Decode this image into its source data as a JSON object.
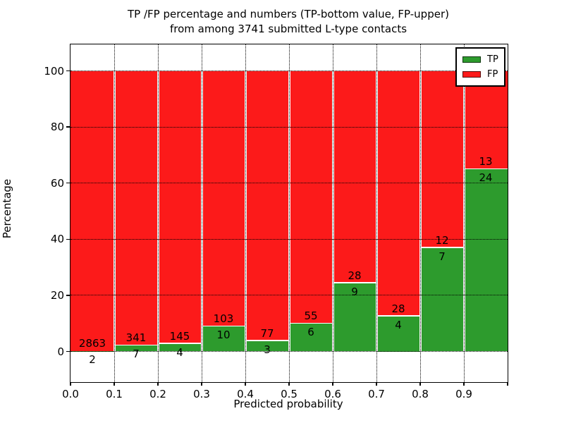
{
  "title": {
    "line1": "TP /FP percentage and numbers (TP-bottom value, FP-upper)",
    "line2": "from among 3741 submitted L-type contacts"
  },
  "axes": {
    "xlabel": "Predicted probability",
    "ylabel": "Percentage",
    "xtick_labels": [
      "0.0",
      "0.1",
      "0.2",
      "0.3",
      "0.4",
      "0.5",
      "0.6",
      "0.7",
      "0.8",
      "0.9"
    ],
    "ytick_values": [
      0,
      20,
      40,
      60,
      80,
      100
    ]
  },
  "legend": {
    "items": [
      {
        "label": "TP",
        "color": "#2d9b2d"
      },
      {
        "label": "FP",
        "color": "#fc1a1a"
      }
    ]
  },
  "colors": {
    "tp": "#2d9b2d",
    "fp": "#fc1a1a",
    "grid": "#000000",
    "background": "#ffffff"
  },
  "chart_data": {
    "type": "bar",
    "stacked": true,
    "normalized": "each bar scaled to 100%",
    "title": "TP /FP percentage and numbers (TP-bottom value, FP-upper) from among 3741 submitted L-type contacts",
    "xlabel": "Predicted probability",
    "ylabel": "Percentage",
    "total_contacts": 3741,
    "bins": [
      "0.0-0.1",
      "0.1-0.2",
      "0.2-0.3",
      "0.3-0.4",
      "0.4-0.5",
      "0.5-0.6",
      "0.6-0.7",
      "0.7-0.8",
      "0.8-0.9",
      "0.9-1.0"
    ],
    "series": [
      {
        "name": "TP",
        "color": "#2d9b2d",
        "counts": [
          2,
          7,
          4,
          10,
          3,
          6,
          9,
          4,
          7,
          24
        ]
      },
      {
        "name": "FP",
        "color": "#fc1a1a",
        "counts": [
          2863,
          341,
          145,
          103,
          77,
          55,
          28,
          28,
          12,
          13
        ]
      }
    ],
    "tp_percent": [
      0.07,
      2.01,
      2.68,
      8.85,
      3.75,
      9.84,
      24.32,
      12.5,
      36.84,
      64.86
    ],
    "xlim": [
      0.0,
      1.0
    ],
    "ylim": [
      0,
      100
    ],
    "grid": "dotted",
    "legend_position": "upper right"
  }
}
